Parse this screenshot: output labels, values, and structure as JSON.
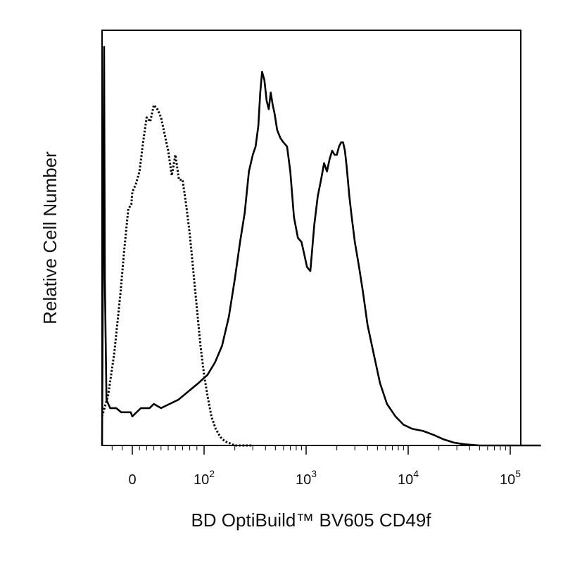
{
  "chart_data": {
    "type": "line",
    "title": "",
    "xlabel": "BD OptiBuild™ BV605 CD49f",
    "ylabel": "Relative Cell Number",
    "x_scale": "biexponential (log above 10^2)",
    "xlim": [
      -150,
      200000
    ],
    "ylim": [
      0,
      100
    ],
    "grid": false,
    "legend": "none",
    "x_tick_labels": [
      {
        "value": 0,
        "base": "0",
        "exp": ""
      },
      {
        "value": 100,
        "base": "10",
        "exp": "2"
      },
      {
        "value": 1000,
        "base": "10",
        "exp": "3"
      },
      {
        "value": 10000,
        "base": "10",
        "exp": "4"
      },
      {
        "value": 100000,
        "base": "10",
        "exp": "5"
      }
    ],
    "series": [
      {
        "style": "solid",
        "color": "#000000",
        "x": [
          -150,
          -140,
          -136,
          -128,
          -110,
          -80,
          -55,
          -30,
          -8,
          0,
          6,
          12,
          18,
          24,
          30,
          40,
          52,
          64,
          78,
          92,
          108,
          128,
          150,
          175,
          200,
          225,
          250,
          275,
          300,
          320,
          340,
          355,
          370,
          390,
          410,
          430,
          450,
          470,
          490,
          520,
          560,
          600,
          650,
          700,
          760,
          830,
          900,
          960,
          1020,
          1100,
          1200,
          1300,
          1400,
          1500,
          1600,
          1700,
          1800,
          1900,
          2000,
          2100,
          2200,
          2300,
          2400,
          2500,
          2650,
          2800,
          3000,
          3300,
          3600,
          4000,
          4600,
          5300,
          6200,
          7500,
          9000,
          11000,
          14000,
          18000,
          22000,
          28000,
          35000,
          50000,
          70000,
          100000,
          150000,
          200000
        ],
        "y": [
          0,
          96,
          40,
          11,
          9,
          9,
          8,
          8,
          8,
          7,
          8,
          9,
          9,
          9,
          10,
          9,
          10,
          11,
          13,
          15,
          17,
          20,
          24,
          31,
          40,
          49,
          56,
          66,
          70,
          72,
          77,
          85,
          90,
          88,
          83,
          81,
          85,
          82,
          80,
          76,
          74,
          73,
          72,
          66,
          55,
          50,
          49,
          46,
          43,
          42,
          53,
          60,
          64,
          68,
          66,
          69,
          71,
          70,
          70,
          72,
          73,
          73,
          71,
          67,
          60,
          55,
          49,
          43,
          37,
          29,
          22,
          15,
          10,
          7,
          5,
          4,
          3.5,
          2.5,
          1.5,
          0.7,
          0.3,
          0,
          0,
          0,
          0,
          0
        ]
      },
      {
        "style": "dotted",
        "color": "#000000",
        "x": [
          -150,
          -120,
          -90,
          -60,
          -40,
          -20,
          -5,
          0,
          5,
          10,
          15,
          20,
          25,
          30,
          35,
          40,
          45,
          50,
          55,
          60,
          65,
          70,
          75,
          80,
          85,
          90,
          95,
          100,
          108,
          118,
          130,
          145,
          160,
          180,
          200,
          230,
          300
        ],
        "y": [
          7,
          12,
          22,
          36,
          47,
          57,
          58,
          61,
          63,
          66,
          73,
          79,
          78,
          82,
          81,
          79,
          75,
          71,
          65,
          70,
          64,
          64,
          58,
          51,
          42,
          33,
          24,
          17,
          12,
          7,
          4,
          2,
          1,
          0.5,
          0,
          0,
          0
        ]
      }
    ]
  }
}
